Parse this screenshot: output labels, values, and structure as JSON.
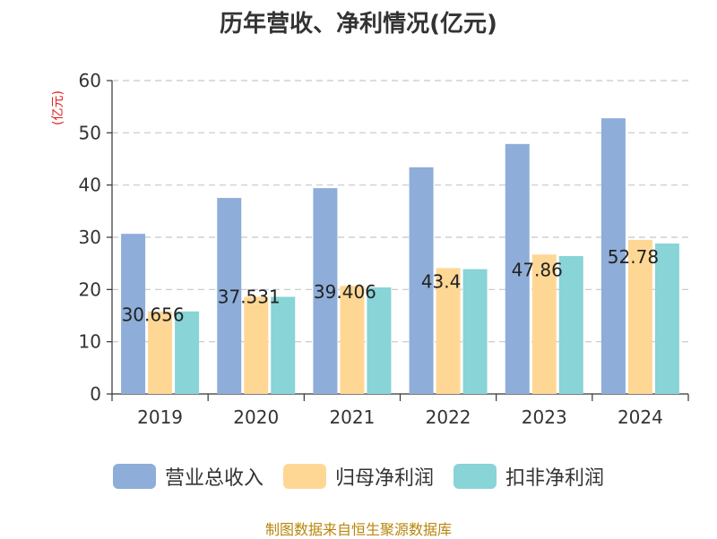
{
  "title": "历年营收、净利情况(亿元)",
  "unit_label": "(亿元)",
  "source": "制图数据来自恒生聚源数据库",
  "chart_data": {
    "type": "bar",
    "categories": [
      "2019",
      "2020",
      "2021",
      "2022",
      "2023",
      "2024"
    ],
    "series": [
      {
        "name": "营业总收入",
        "color": "#8eadd9",
        "values": [
          30.656,
          37.531,
          39.406,
          43.4,
          47.86,
          52.78
        ]
      },
      {
        "name": "归母净利润",
        "color": "#ffd795",
        "values": [
          15.8,
          18.6,
          20.7,
          24.1,
          26.7,
          29.5
        ]
      },
      {
        "name": "扣非净利润",
        "color": "#88d4d7",
        "values": [
          15.8,
          18.6,
          20.4,
          23.9,
          26.4,
          28.8
        ]
      }
    ],
    "data_labels": [
      "30.656",
      "37.531",
      "39.406",
      "43.4",
      "47.86",
      "52.78"
    ],
    "yticks": [
      "0",
      "10",
      "20",
      "30",
      "40",
      "50",
      "60"
    ],
    "ylim": [
      0,
      60
    ],
    "grid": true,
    "legend_position": "bottom"
  }
}
